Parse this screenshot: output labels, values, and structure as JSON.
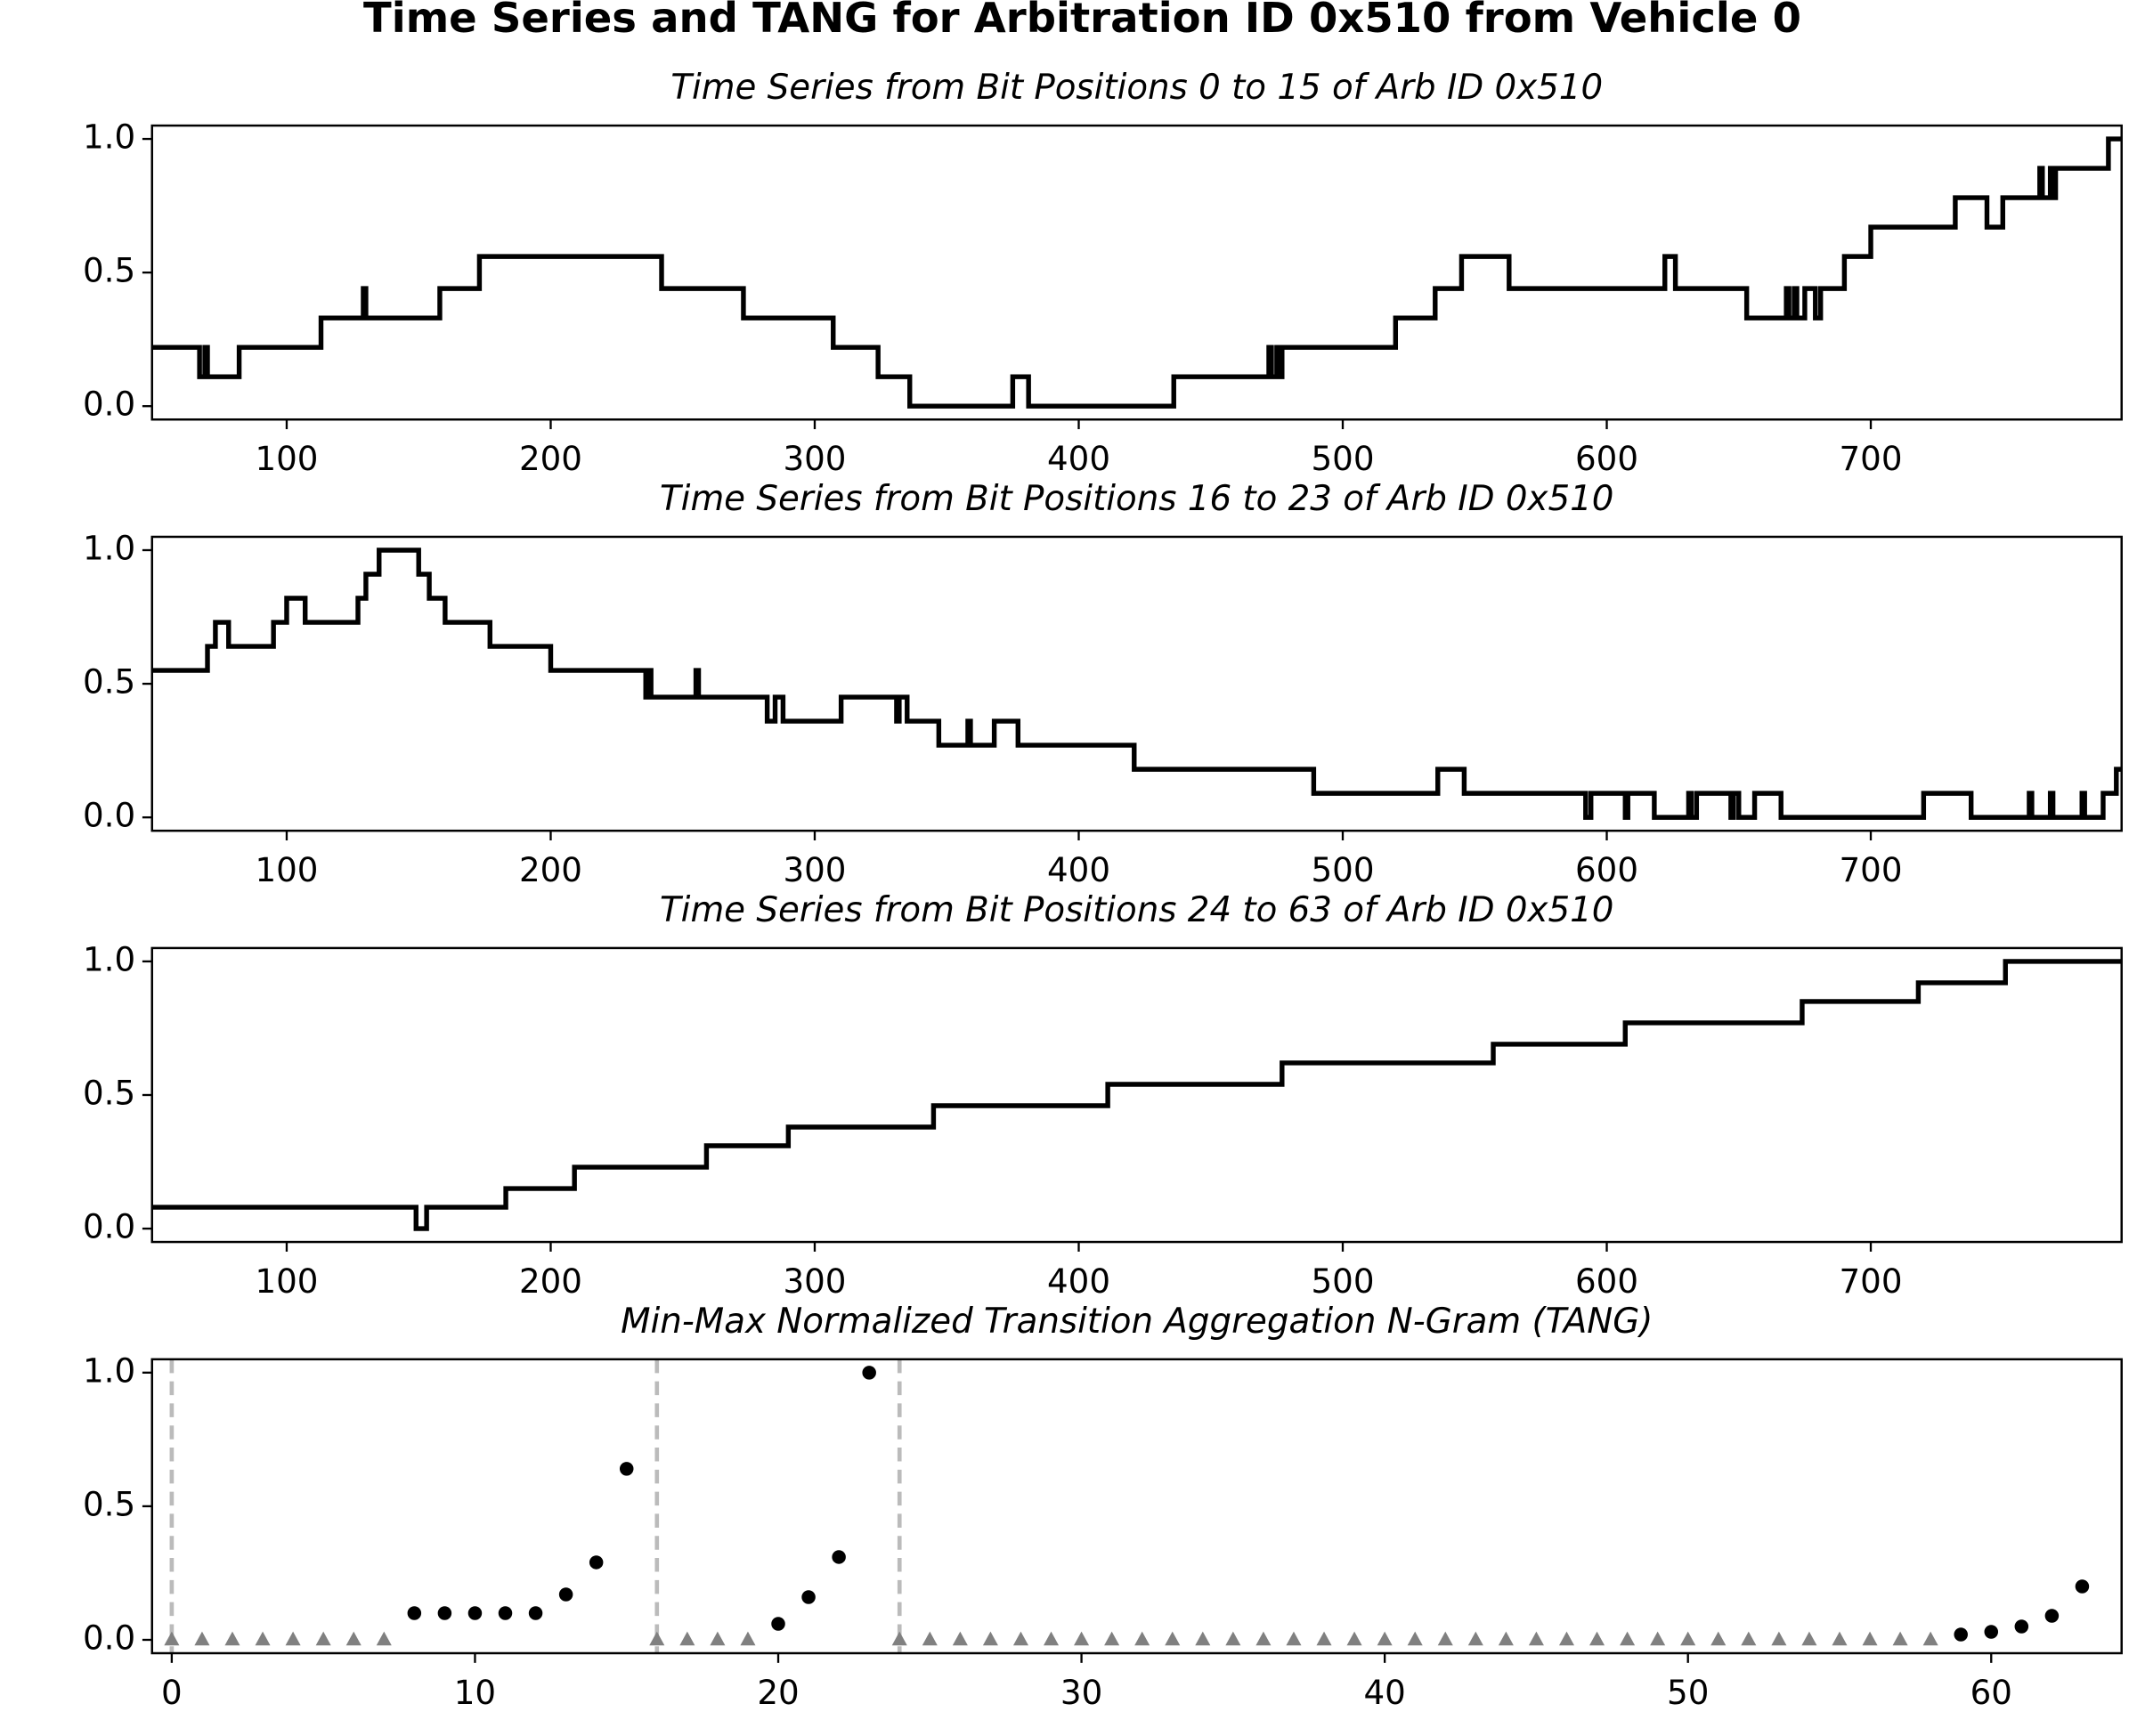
{
  "title": "Time Series and TANG for Arbitration ID 0x510 from Vehicle 0",
  "chart_data": [
    {
      "type": "line",
      "title": "Time Series from Bit Positions 0 to 15 of Arb ID 0x510",
      "drawstyle": "steps-post",
      "color": "#000000",
      "x": [
        49,
        67,
        69,
        70,
        82,
        113,
        129,
        130,
        158,
        173,
        242,
        273,
        307,
        324,
        336,
        375,
        381,
        436,
        472,
        473,
        475,
        476,
        477,
        520,
        535,
        545,
        563,
        622,
        626,
        653,
        668,
        669,
        671,
        672,
        675,
        679,
        681,
        690,
        700,
        732,
        744,
        750,
        764,
        765,
        768,
        769,
        770,
        790,
        795
      ],
      "values": [
        0.22,
        0.11,
        0.22,
        0.11,
        0.22,
        0.33,
        0.44,
        0.33,
        0.44,
        0.56,
        0.44,
        0.33,
        0.22,
        0.11,
        0,
        0.11,
        0,
        0.11,
        0.22,
        0.11,
        0.22,
        0.11,
        0.22,
        0.33,
        0.44,
        0.56,
        0.44,
        0.56,
        0.44,
        0.33,
        0.44,
        0.33,
        0.44,
        0.33,
        0.44,
        0.33,
        0.44,
        0.56,
        0.67,
        0.78,
        0.67,
        0.78,
        0.89,
        0.78,
        0.89,
        0.78,
        0.89,
        1.0,
        1.0
      ],
      "xlim": [
        49,
        795
      ],
      "xticks": [
        100,
        200,
        300,
        400,
        500,
        600,
        700
      ],
      "ylim": [
        -0.05,
        1.05
      ],
      "yticks": [
        {
          "value": 0,
          "label": "0.0"
        },
        {
          "value": 0.5,
          "label": "0.5"
        },
        {
          "value": 1,
          "label": "1.0"
        }
      ]
    },
    {
      "type": "line",
      "title": "Time Series from Bit Positions 16 to 23 of Arb ID 0x510",
      "drawstyle": "steps-post",
      "color": "#000000",
      "x": [
        49,
        70,
        73,
        78,
        95,
        100,
        107,
        127,
        130,
        135,
        150,
        154,
        160,
        177,
        200,
        236,
        237,
        238,
        255,
        256,
        282,
        285,
        288,
        310,
        331,
        332,
        335,
        347,
        358,
        359,
        368,
        377,
        421,
        489,
        536,
        546,
        592,
        594,
        607,
        608,
        618,
        631,
        632,
        634,
        647,
        648,
        650,
        656,
        666,
        720,
        738,
        760,
        761,
        768,
        769,
        780,
        781,
        788,
        793,
        795
      ],
      "values": [
        0.55,
        0.64,
        0.73,
        0.64,
        0.73,
        0.82,
        0.73,
        0.82,
        0.91,
        1.0,
        0.91,
        0.82,
        0.73,
        0.64,
        0.55,
        0.45,
        0.55,
        0.45,
        0.55,
        0.45,
        0.36,
        0.45,
        0.36,
        0.45,
        0.36,
        0.45,
        0.36,
        0.27,
        0.36,
        0.27,
        0.36,
        0.27,
        0.18,
        0.09,
        0.18,
        0.09,
        0,
        0.09,
        0,
        0.09,
        0,
        0.09,
        0,
        0.09,
        0,
        0.09,
        0,
        0.09,
        0,
        0.09,
        0,
        0.09,
        0,
        0.09,
        0,
        0.09,
        0,
        0.09,
        0.18,
        0.18
      ],
      "xlim": [
        49,
        795
      ],
      "xticks": [
        100,
        200,
        300,
        400,
        500,
        600,
        700
      ],
      "ylim": [
        -0.05,
        1.05
      ],
      "yticks": [
        {
          "value": 0,
          "label": "0.0"
        },
        {
          "value": 0.5,
          "label": "0.5"
        },
        {
          "value": 1,
          "label": "1.0"
        }
      ]
    },
    {
      "type": "line",
      "title": "Time Series from Bit Positions 24 to 63 of Arb ID 0x510",
      "drawstyle": "steps-post",
      "color": "#000000",
      "x": [
        49,
        149,
        153,
        183,
        209,
        259,
        290,
        345,
        411,
        477,
        557,
        607,
        674,
        718,
        751,
        795
      ],
      "values": [
        0.08,
        0,
        0.08,
        0.15,
        0.23,
        0.31,
        0.38,
        0.46,
        0.54,
        0.62,
        0.69,
        0.77,
        0.85,
        0.92,
        1.0,
        1.0
      ],
      "xlim": [
        49,
        795
      ],
      "xticks": [
        100,
        200,
        300,
        400,
        500,
        600,
        700
      ],
      "ylim": [
        -0.05,
        1.05
      ],
      "yticks": [
        {
          "value": 0,
          "label": "0.0"
        },
        {
          "value": 0.5,
          "label": "0.5"
        },
        {
          "value": 1,
          "label": "1.0"
        }
      ]
    },
    {
      "type": "scatter",
      "title": "Min-Max Normalized Transition Aggregation N-Gram (TANG)",
      "color": "#000000",
      "zero_color": "#808080",
      "boundary_color": "#bbbbbb",
      "boundaries": [
        0,
        16,
        24
      ],
      "x": [
        0,
        1,
        2,
        3,
        4,
        5,
        6,
        7,
        8,
        9,
        10,
        11,
        12,
        13,
        14,
        15,
        16,
        17,
        18,
        19,
        20,
        21,
        22,
        23,
        24,
        25,
        26,
        27,
        28,
        29,
        30,
        31,
        32,
        33,
        34,
        35,
        36,
        37,
        38,
        39,
        40,
        41,
        42,
        43,
        44,
        45,
        46,
        47,
        48,
        49,
        50,
        51,
        52,
        53,
        54,
        55,
        56,
        57,
        58,
        59,
        60,
        61,
        62,
        63
      ],
      "values": [
        0,
        0,
        0,
        0,
        0,
        0,
        0,
        0,
        0.1,
        0.1,
        0.1,
        0.1,
        0.1,
        0.17,
        0.29,
        0.64,
        0,
        0,
        0,
        0,
        0.06,
        0.16,
        0.31,
        1.0,
        0,
        0,
        0,
        0,
        0,
        0,
        0,
        0,
        0,
        0,
        0,
        0,
        0,
        0,
        0,
        0,
        0,
        0,
        0,
        0,
        0,
        0,
        0,
        0,
        0,
        0,
        0,
        0,
        0,
        0,
        0,
        0,
        0,
        0,
        0,
        0.02,
        0.03,
        0.05,
        0.09,
        0.2
      ],
      "xlim": [
        -0.65,
        64.3
      ],
      "xticks": [
        0,
        10,
        20,
        30,
        40,
        50,
        60
      ],
      "ylim": [
        -0.05,
        1.05
      ],
      "yticks": [
        {
          "value": 0,
          "label": "0.0"
        },
        {
          "value": 0.5,
          "label": "0.5"
        },
        {
          "value": 1,
          "label": "1.0"
        }
      ]
    }
  ]
}
